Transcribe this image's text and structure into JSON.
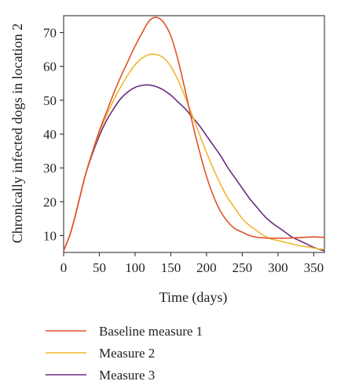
{
  "chart_data": {
    "type": "line",
    "xlabel": "Time (days)",
    "ylabel": "Chronically infected dogs in location 2",
    "xlim": [
      0,
      365
    ],
    "ylim": [
      5,
      75
    ],
    "xticks": [
      0,
      50,
      100,
      150,
      200,
      250,
      300,
      350
    ],
    "yticks": [
      10,
      20,
      30,
      40,
      50,
      60,
      70
    ],
    "grid": false,
    "legend_position": "bottom",
    "series": [
      {
        "name": "Baseline measure 1",
        "color": "#e0522b",
        "x": [
          0,
          10,
          20,
          30,
          40,
          50,
          60,
          70,
          80,
          90,
          100,
          110,
          120,
          130,
          140,
          150,
          160,
          170,
          180,
          190,
          200,
          210,
          220,
          230,
          240,
          250,
          260,
          270,
          280,
          290,
          300,
          310,
          320,
          330,
          340,
          350,
          360,
          365
        ],
        "y": [
          5.5,
          11,
          19,
          27.5,
          34.5,
          41,
          46.5,
          52,
          57,
          61.5,
          66,
          70,
          73.5,
          74.5,
          73,
          69,
          62,
          53,
          43.5,
          35,
          27.5,
          21.5,
          17,
          14,
          12,
          11,
          10,
          9.5,
          9.3,
          9.2,
          9.2,
          9.2,
          9.3,
          9.4,
          9.5,
          9.6,
          9.5,
          9.5
        ]
      },
      {
        "name": "Measure 2",
        "color": "#f0b72c",
        "x": [
          0,
          10,
          20,
          30,
          40,
          50,
          60,
          70,
          80,
          90,
          100,
          110,
          120,
          130,
          140,
          150,
          160,
          170,
          180,
          190,
          200,
          210,
          220,
          230,
          240,
          250,
          260,
          270,
          280,
          290,
          300,
          310,
          320,
          330,
          340,
          350,
          360,
          365
        ],
        "y": [
          5.5,
          11,
          19,
          27.5,
          34.5,
          40.5,
          45.5,
          50,
          54,
          57.5,
          60.5,
          62.5,
          63.5,
          63.5,
          62.5,
          60,
          56,
          51,
          45.5,
          40,
          34.5,
          29.5,
          25,
          21,
          18,
          15,
          13,
          11.5,
          10,
          9,
          8.5,
          8,
          7.5,
          7,
          6.7,
          6.3,
          6,
          6
        ]
      },
      {
        "name": "Measure 3",
        "color": "#6a2a84",
        "x": [
          0,
          10,
          20,
          30,
          40,
          50,
          60,
          70,
          80,
          90,
          100,
          110,
          120,
          130,
          140,
          150,
          160,
          170,
          180,
          190,
          200,
          210,
          220,
          230,
          240,
          250,
          260,
          270,
          280,
          290,
          300,
          310,
          320,
          330,
          340,
          350,
          360,
          365
        ],
        "y": [
          5.5,
          11,
          19,
          27.5,
          34,
          39.5,
          44,
          47.5,
          50.5,
          52.5,
          53.8,
          54.4,
          54.5,
          54,
          53,
          51.5,
          49.5,
          47.5,
          45,
          42.5,
          39.5,
          36.5,
          33.5,
          30,
          27,
          24,
          21,
          18.5,
          16,
          14,
          12.5,
          11,
          9.5,
          8.5,
          7.5,
          6.5,
          5.8,
          5.5
        ]
      }
    ]
  }
}
